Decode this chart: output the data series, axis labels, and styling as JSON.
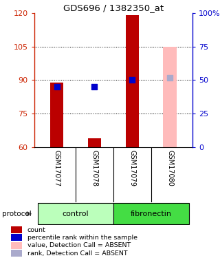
{
  "title": "GDS696 / 1382350_at",
  "samples": [
    "GSM17077",
    "GSM17078",
    "GSM17079",
    "GSM17080"
  ],
  "ylim_left": [
    60,
    120
  ],
  "ylim_right": [
    0,
    100
  ],
  "yticks_left": [
    60,
    75,
    90,
    105,
    120
  ],
  "yticks_right": [
    0,
    25,
    50,
    75,
    100
  ],
  "ytick_labels_right": [
    "0",
    "25",
    "50",
    "75",
    "100%"
  ],
  "bar_bottoms": [
    60,
    60,
    60,
    60
  ],
  "bar_tops": [
    89,
    64,
    119,
    105
  ],
  "bar_colors": [
    "#bb0000",
    "#bb0000",
    "#bb0000",
    "#ffbbbb"
  ],
  "dot_values": [
    87,
    87,
    90,
    91
  ],
  "dot_colors": [
    "#0000cc",
    "#0000cc",
    "#0000cc",
    "#aaaacc"
  ],
  "groups": [
    {
      "label": "control",
      "samples": [
        0,
        1
      ],
      "color": "#bbffbb"
    },
    {
      "label": "fibronectin",
      "samples": [
        2,
        3
      ],
      "color": "#44dd44"
    }
  ],
  "protocol_label": "protocol",
  "label_area_color": "#cccccc",
  "bg_color": "#ffffff",
  "grid_lines": [
    75,
    90,
    105
  ],
  "legend_items": [
    {
      "label": "count",
      "color": "#bb0000"
    },
    {
      "label": "percentile rank within the sample",
      "color": "#0000cc"
    },
    {
      "label": "value, Detection Call = ABSENT",
      "color": "#ffbbbb"
    },
    {
      "label": "rank, Detection Call = ABSENT",
      "color": "#aaaacc"
    }
  ]
}
